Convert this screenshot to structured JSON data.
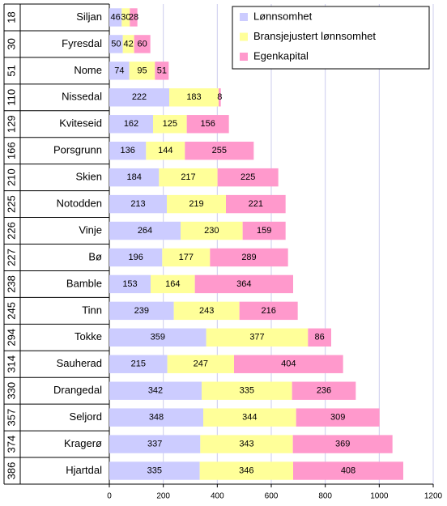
{
  "chart_data": {
    "type": "bar",
    "orientation": "horizontal",
    "stacked": true,
    "ranks": [
      18,
      30,
      51,
      110,
      129,
      166,
      210,
      225,
      226,
      227,
      238,
      245,
      294,
      314,
      330,
      357,
      374,
      386
    ],
    "categories": [
      "Siljan",
      "Fyresdal",
      "Nome",
      "Nissedal",
      "Kviteseid",
      "Porsgrunn",
      "Skien",
      "Notodden",
      "Vinje",
      "Bø",
      "Bamble",
      "Tinn",
      "Tokke",
      "Sauherad",
      "Drangedal",
      "Seljord",
      "Kragerø",
      "Hjartdal"
    ],
    "series": [
      {
        "name": "Lønnsomhet",
        "color": "#ccccff",
        "values": [
          46,
          50,
          74,
          222,
          162,
          136,
          184,
          213,
          264,
          196,
          153,
          239,
          359,
          215,
          342,
          348,
          337,
          335
        ]
      },
      {
        "name": "Bransjejustert lønnsomhet",
        "color": "#ffff99",
        "values": [
          30,
          42,
          95,
          183,
          125,
          144,
          217,
          219,
          230,
          177,
          164,
          243,
          377,
          247,
          335,
          344,
          343,
          346
        ]
      },
      {
        "name": "Egenkapital",
        "color": "#ff99cc",
        "values": [
          28,
          60,
          51,
          8,
          156,
          255,
          225,
          221,
          159,
          289,
          364,
          216,
          86,
          404,
          236,
          309,
          369,
          408
        ]
      }
    ],
    "xlim": [
      0,
      1200
    ],
    "xticks": [
      0,
      200,
      400,
      600,
      800,
      1000,
      1200
    ],
    "grid": true,
    "legend": "top-right"
  }
}
